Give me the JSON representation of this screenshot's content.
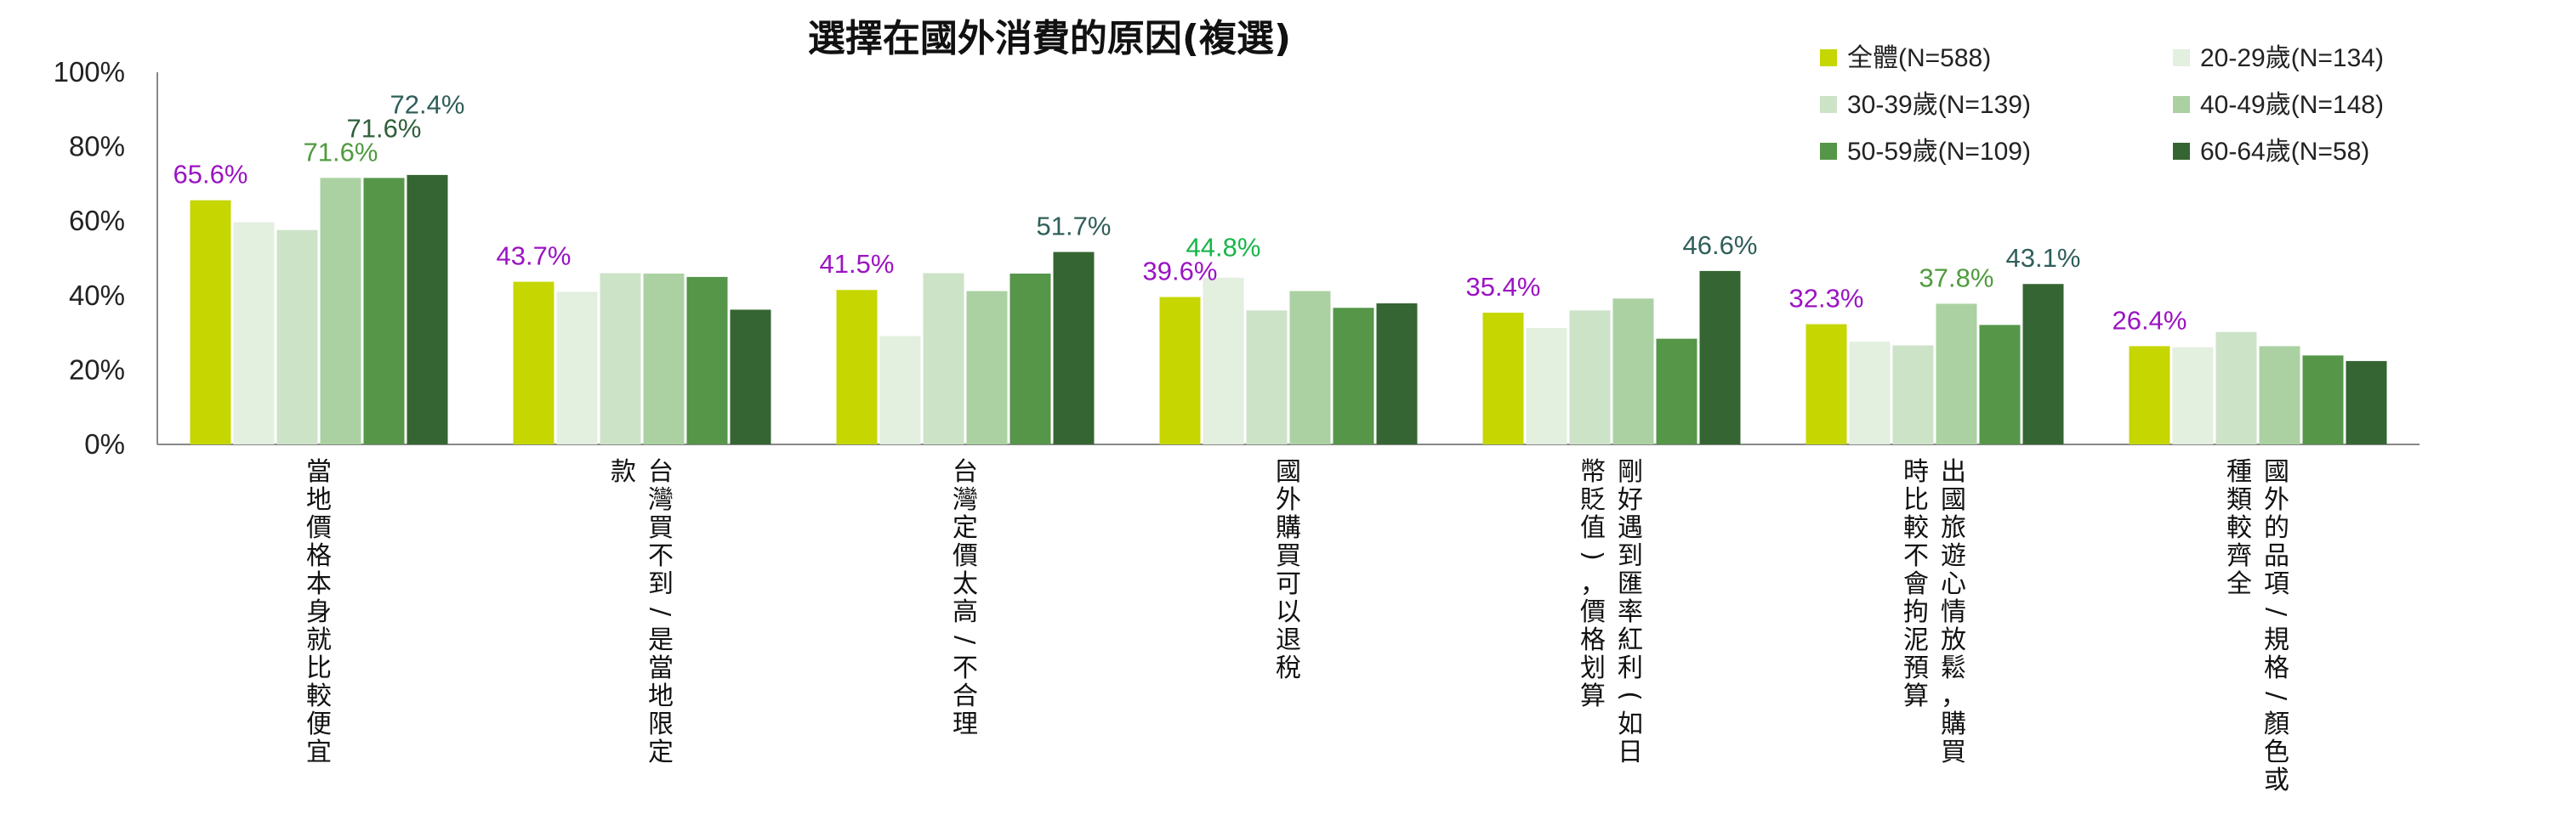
{
  "chart_data": {
    "type": "bar",
    "title": "選擇在國外消費的原因(複選)",
    "xlabel": "",
    "ylabel": "",
    "ylim": [
      0,
      100
    ],
    "yticks": [
      "0%",
      "20%",
      "40%",
      "60%",
      "80%",
      "100%"
    ],
    "legend_position": "top-right",
    "categories": [
      "當地價格本身就比較便宜",
      "台灣買不到/是當地限定款",
      "台灣定價太高/不合理",
      "國外購買可以退稅",
      "剛好遇到匯率紅利(如日幣貶值)，價格划算",
      "出國旅遊心情放鬆，購買時比較不會拘泥預算",
      "國外的品項/規格/顏色或種類較齊全"
    ],
    "category_label_lines": [
      [
        "當地價格本身就比較便宜"
      ],
      [
        "台灣買不到/是當地限定",
        "款"
      ],
      [
        "台灣定價太高/不合理"
      ],
      [
        "國外購買可以退稅"
      ],
      [
        "剛好遇到匯率紅利(如日",
        "幣貶值)，價格划算"
      ],
      [
        "出國旅遊心情放鬆，購買",
        "時比較不會拘泥預算"
      ],
      [
        "國外的品項/規格/顏色或",
        "種類較齊全"
      ]
    ],
    "series": [
      {
        "name": "全體(N=588)",
        "color": "#c5d600",
        "values": [
          65.6,
          43.7,
          41.5,
          39.6,
          35.4,
          32.3,
          26.4
        ]
      },
      {
        "name": "20-29歲(N=134)",
        "color": "#e3efdf",
        "values": [
          59.7,
          41.0,
          29.1,
          44.8,
          31.3,
          27.6,
          26.1
        ]
      },
      {
        "name": "30-39歲(N=139)",
        "color": "#cde3c8",
        "values": [
          57.6,
          46.0,
          46.0,
          36.0,
          36.0,
          26.6,
          30.2
        ]
      },
      {
        "name": "40-49歲(N=148)",
        "color": "#abd1a2",
        "values": [
          71.6,
          45.9,
          41.2,
          41.2,
          39.2,
          37.8,
          26.4
        ]
      },
      {
        "name": "50-59歲(N=109)",
        "color": "#559649",
        "values": [
          71.6,
          45.0,
          45.9,
          36.7,
          28.4,
          32.1,
          23.9
        ]
      },
      {
        "name": "60-64歲(N=58)",
        "color": "#356532",
        "values": [
          72.4,
          36.2,
          51.7,
          37.9,
          46.6,
          43.1,
          22.4
        ]
      }
    ],
    "data_labels": [
      [
        {
          "series": 0,
          "text": "65.6%",
          "color": "#9b14c2"
        },
        {
          "series": 3,
          "text": "71.6%",
          "color": "#4f9b3f"
        },
        {
          "series": 4,
          "text": "71.6%",
          "color": "#2f5f3a"
        },
        {
          "series": 5,
          "text": "72.4%",
          "color": "#2f5f5a"
        }
      ],
      [
        {
          "series": 0,
          "text": "43.7%",
          "color": "#9b14c2"
        }
      ],
      [
        {
          "series": 0,
          "text": "41.5%",
          "color": "#9b14c2"
        },
        {
          "series": 5,
          "text": "51.7%",
          "color": "#2f5f5a"
        }
      ],
      [
        {
          "series": 0,
          "text": "39.6%",
          "color": "#9b14c2"
        },
        {
          "series": 1,
          "text": "44.8%",
          "color": "#19b54a"
        }
      ],
      [
        {
          "series": 0,
          "text": "35.4%",
          "color": "#9b14c2"
        },
        {
          "series": 5,
          "text": "46.6%",
          "color": "#2f5f5a"
        }
      ],
      [
        {
          "series": 0,
          "text": "32.3%",
          "color": "#9b14c2"
        },
        {
          "series": 3,
          "text": "37.8%",
          "color": "#4f9b3f"
        },
        {
          "series": 5,
          "text": "43.1%",
          "color": "#2f5f5a"
        }
      ],
      [
        {
          "series": 0,
          "text": "26.4%",
          "color": "#9b14c2"
        }
      ]
    ]
  }
}
